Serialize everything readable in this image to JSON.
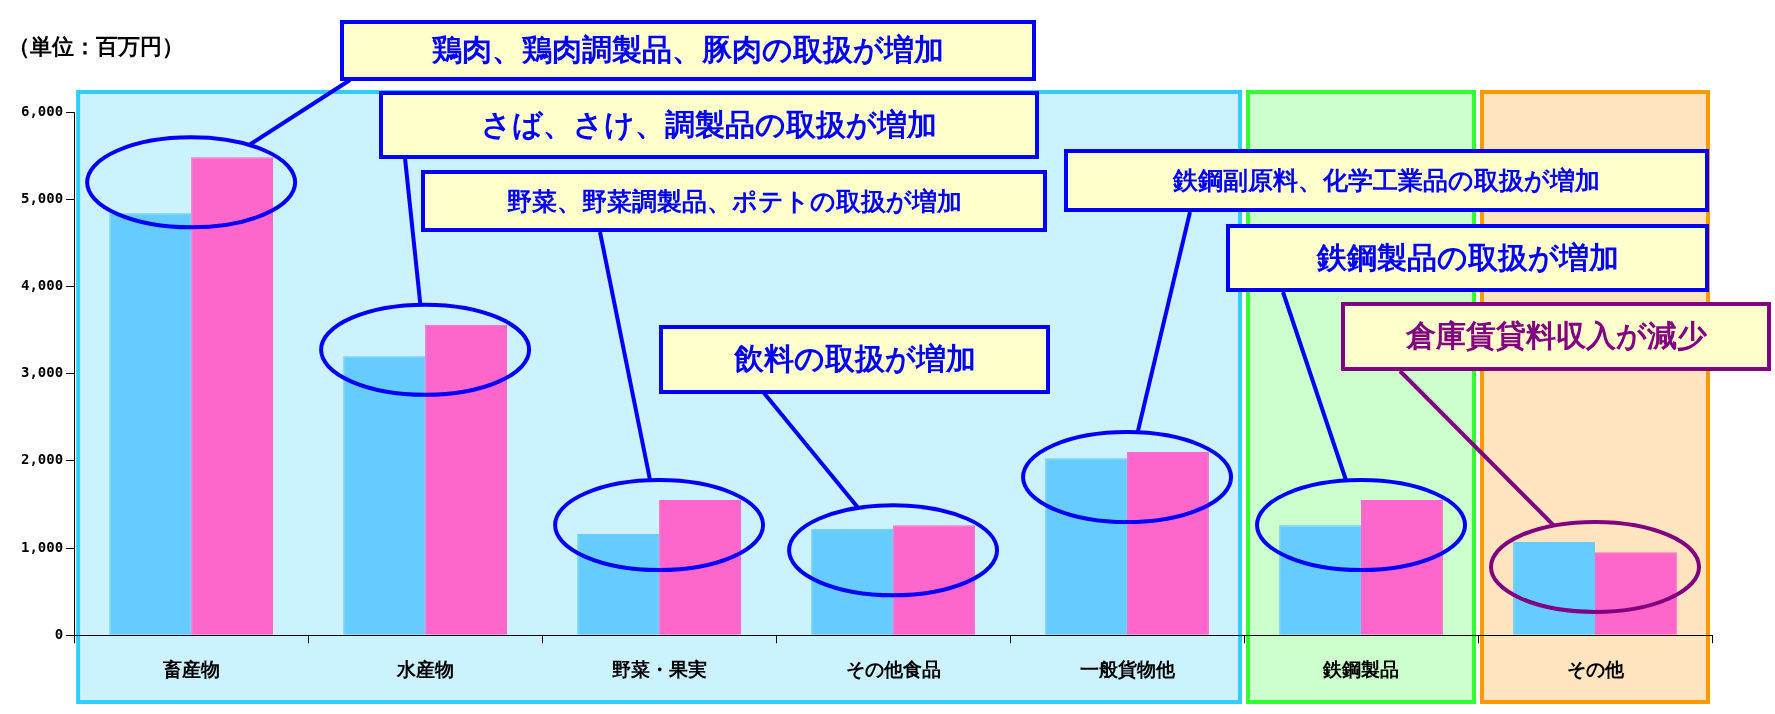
{
  "chart_data": {
    "type": "bar",
    "ylabel": "（単位：百万円）",
    "categories": [
      "畜産物",
      "水産物",
      "野菜・果実",
      "その他食品",
      "一般貨物他",
      "鉄鋼製品",
      "その他"
    ],
    "series": [
      {
        "color": "#66ccff",
        "values": [
          4840,
          3200,
          1160,
          1220,
          2030,
          1260,
          1070
        ]
      },
      {
        "color": "#ff66cc",
        "values": [
          5480,
          3560,
          1550,
          1260,
          2100,
          1550,
          950
        ]
      }
    ],
    "ylim": [
      0,
      6000
    ],
    "yticks": [
      {
        "value": 0,
        "label": "0"
      },
      {
        "value": 1000,
        "label": "1,000"
      },
      {
        "value": 2000,
        "label": "2,000"
      },
      {
        "value": 3000,
        "label": "3,000"
      },
      {
        "value": 4000,
        "label": "4,000"
      },
      {
        "value": 5000,
        "label": "5,000"
      },
      {
        "value": 6000,
        "label": "6,000"
      }
    ],
    "grid": false,
    "legend": false,
    "bands": [
      {
        "axis": "x",
        "from": "畜産物",
        "to": "一般貨物他",
        "color": "#33ccff"
      },
      {
        "axis": "x",
        "from": "鉄鋼製品",
        "to": "鉄鋼製品",
        "color": "#33ff33"
      },
      {
        "axis": "x",
        "from": "その他",
        "to": "その他",
        "color": "#ff9900"
      }
    ],
    "annotations": [
      "鶏肉、鶏肉調製品、豚肉の取扱が増加",
      "さば、さけ、調製品の取扱が増加",
      "野菜、野菜調製品、ポテトの取扱が増加",
      "飲料の取扱が増加",
      "鉄鋼副原料、化学工業品の取扱が増加",
      "鉄鋼製品の取扱が増加",
      "倉庫賃貸料収入が減少"
    ]
  }
}
